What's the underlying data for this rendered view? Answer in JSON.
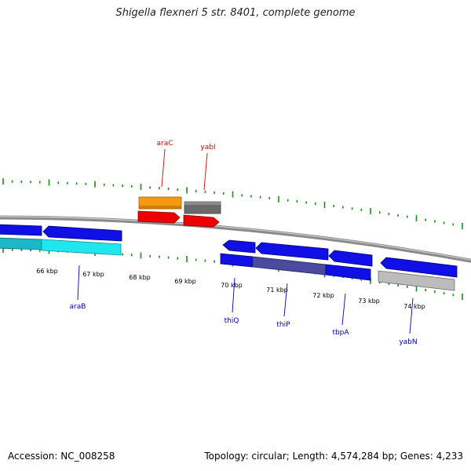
{
  "title": "Shigella flexneri 5 str. 8401, complete genome",
  "footer": {
    "accession": "Accession: NC_008258",
    "summary": "Topology: circular; Length: 4,574,284 bp; Genes: 4,233"
  },
  "colors": {
    "backbone": "#8a8a8a",
    "tick": "#1a8c1a",
    "forward_label": "#d40000",
    "reverse_label": "#0000b0",
    "blue": "#1010e6",
    "cyan": "#22e6ee",
    "gray": "#bcbcbc",
    "orange": "#f59a10",
    "red": "#ee0000",
    "dark_gray": "#6a6a6a",
    "purple": "#4a4aa0"
  },
  "ruler": {
    "labels": [
      "66 kbp",
      "67 kbp",
      "68 kbp",
      "69 kbp",
      "70 kbp",
      "71 kbp",
      "72 kbp",
      "73 kbp",
      "74 kbp"
    ]
  },
  "genes": {
    "forward": [
      "araC",
      "yabI"
    ],
    "reverse": [
      "araB",
      "thiQ",
      "thiP",
      "tbpA",
      "yabN"
    ]
  }
}
